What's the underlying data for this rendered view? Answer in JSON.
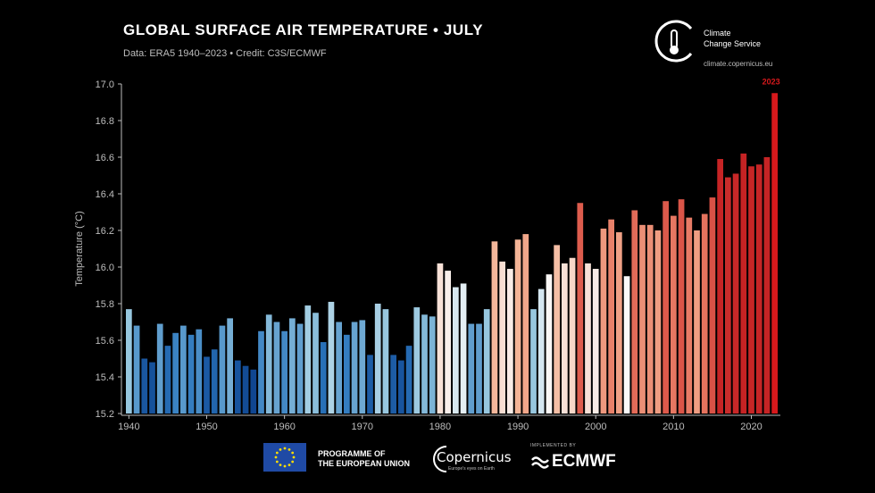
{
  "header": {
    "title": "GLOBAL SURFACE AIR TEMPERATURE • JULY",
    "subtitle": "Data: ERA5 1940–2023 • Credit: C3S/ECMWF"
  },
  "logos": {
    "c3s_line1": "Climate",
    "c3s_line2": "Change Service",
    "c3s_url": "climate.copernicus.eu",
    "eu_line1": "PROGRAMME OF",
    "eu_line2": "THE EUROPEAN UNION",
    "copernicus": "Copernicus",
    "copernicus_sub": "Europe's eyes on Earth",
    "ecmwf_small": "IMPLEMENTED BY",
    "ecmwf": "ECMWF"
  },
  "chart_data": {
    "type": "bar",
    "ylabel": "Temperature (°C)",
    "xlabel": "",
    "ylim": [
      15.2,
      17.0
    ],
    "yticks": [
      15.2,
      15.4,
      15.6,
      15.8,
      16.0,
      16.2,
      16.4,
      16.6,
      16.8,
      17.0
    ],
    "xticks": [
      1940,
      1950,
      1960,
      1970,
      1980,
      1990,
      2000,
      2010,
      2020
    ],
    "highlight_label": "2023",
    "highlight_color": "#d7191c",
    "grid": false,
    "x": [
      1940,
      1941,
      1942,
      1943,
      1944,
      1945,
      1946,
      1947,
      1948,
      1949,
      1950,
      1951,
      1952,
      1953,
      1954,
      1955,
      1956,
      1957,
      1958,
      1959,
      1960,
      1961,
      1962,
      1963,
      1964,
      1965,
      1966,
      1967,
      1968,
      1969,
      1970,
      1971,
      1972,
      1973,
      1974,
      1975,
      1976,
      1977,
      1978,
      1979,
      1980,
      1981,
      1982,
      1983,
      1984,
      1985,
      1986,
      1987,
      1988,
      1989,
      1990,
      1991,
      1992,
      1993,
      1994,
      1995,
      1996,
      1997,
      1998,
      1999,
      2000,
      2001,
      2002,
      2003,
      2004,
      2005,
      2006,
      2007,
      2008,
      2009,
      2010,
      2011,
      2012,
      2013,
      2014,
      2015,
      2016,
      2017,
      2018,
      2019,
      2020,
      2021,
      2022,
      2023
    ],
    "values": [
      15.77,
      15.68,
      15.5,
      15.48,
      15.69,
      15.57,
      15.64,
      15.68,
      15.63,
      15.66,
      15.51,
      15.55,
      15.68,
      15.72,
      15.49,
      15.46,
      15.44,
      15.65,
      15.74,
      15.7,
      15.65,
      15.72,
      15.69,
      15.79,
      15.75,
      15.59,
      15.81,
      15.7,
      15.63,
      15.7,
      15.71,
      15.52,
      15.8,
      15.77,
      15.52,
      15.49,
      15.57,
      15.78,
      15.74,
      15.73,
      16.02,
      15.98,
      15.89,
      15.91,
      15.69,
      15.69,
      15.77,
      16.14,
      16.03,
      15.99,
      16.15,
      16.18,
      15.77,
      15.88,
      15.96,
      16.12,
      16.02,
      16.05,
      16.35,
      16.02,
      15.99,
      16.21,
      16.26,
      16.19,
      15.95,
      16.31,
      16.23,
      16.23,
      16.2,
      16.36,
      16.28,
      16.37,
      16.27,
      16.2,
      16.29,
      16.38,
      16.59,
      16.49,
      16.51,
      16.62,
      16.55,
      16.56,
      16.6,
      16.95
    ]
  }
}
